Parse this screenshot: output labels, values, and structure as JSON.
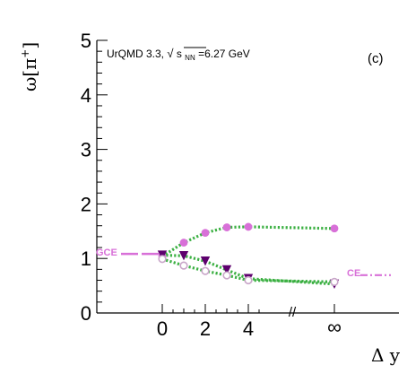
{
  "chart_data": {
    "type": "scatter",
    "annotation": {
      "prefix": "UrQMD 3.3, ",
      "sqrt_arg": "s",
      "sqrt_sub": "NN",
      "suffix": "=6.27 GeV"
    },
    "panel_label": "(c)",
    "ylabel": {
      "base": "ω[π",
      "sup": "+",
      "close": "]"
    },
    "xlabel": "Δ y",
    "ylim": [
      0,
      5
    ],
    "yticks": [
      "0",
      "1",
      "2",
      "3",
      "4",
      "5"
    ],
    "xticks": [
      "0",
      "2",
      "4",
      "∞"
    ],
    "x_break": "//",
    "colors": {
      "fit": "#3cb043",
      "pink": "#d870d8",
      "purple": "#5e006e",
      "open": "#c9a6c9"
    },
    "references": [
      {
        "label": "GCE",
        "value": 1.1,
        "side": "left",
        "style": "dashed"
      },
      {
        "label": "CE",
        "value": 0.71,
        "side": "right",
        "style": "dash-dot"
      }
    ],
    "series": [
      {
        "marker": "filled-circle",
        "points": [
          {
            "x": "0",
            "y": 1.04
          },
          {
            "x": "1",
            "y": 1.29
          },
          {
            "x": "2",
            "y": 1.47
          },
          {
            "x": "3",
            "y": 1.57
          },
          {
            "x": "4",
            "y": 1.58
          },
          {
            "x": "∞",
            "y": 1.55
          }
        ]
      },
      {
        "marker": "down-triangle",
        "points": [
          {
            "x": "0",
            "y": 1.06
          },
          {
            "x": "1",
            "y": 1.05
          },
          {
            "x": "2",
            "y": 0.95
          },
          {
            "x": "3",
            "y": 0.79
          },
          {
            "x": "4",
            "y": 0.63
          },
          {
            "x": "∞",
            "y": 0.53
          }
        ]
      },
      {
        "marker": "open-circle",
        "points": [
          {
            "x": "0",
            "y": 0.99
          },
          {
            "x": "1",
            "y": 0.87
          },
          {
            "x": "2",
            "y": 0.77
          },
          {
            "x": "3",
            "y": 0.69
          },
          {
            "x": "4",
            "y": 0.6
          },
          {
            "x": "∞",
            "y": 0.57
          }
        ]
      }
    ]
  }
}
